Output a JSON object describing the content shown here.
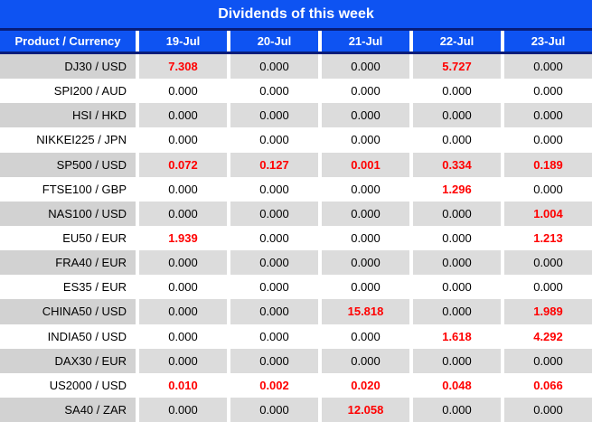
{
  "title": "Dividends of this week",
  "colors": {
    "header-blue": "#0E53F2",
    "navy-line": "#071D7A",
    "row-gray": "#DCDCDC",
    "product-gray": "#D2D2D2",
    "value-red": "#FF0000",
    "value-black": "#000000",
    "separator-white": "#FFFFFF"
  },
  "table": {
    "columns": [
      "Product / Currency",
      "19-Jul",
      "20-Jul",
      "21-Jul",
      "22-Jul",
      "23-Jul"
    ],
    "rows": [
      {
        "product": "DJ30 / USD",
        "values": [
          "7.308",
          "0.000",
          "0.000",
          "5.727",
          "0.000"
        ]
      },
      {
        "product": "SPI200 / AUD",
        "values": [
          "0.000",
          "0.000",
          "0.000",
          "0.000",
          "0.000"
        ]
      },
      {
        "product": "HSI / HKD",
        "values": [
          "0.000",
          "0.000",
          "0.000",
          "0.000",
          "0.000"
        ]
      },
      {
        "product": "NIKKEI225 / JPN",
        "values": [
          "0.000",
          "0.000",
          "0.000",
          "0.000",
          "0.000"
        ]
      },
      {
        "product": "SP500 / USD",
        "values": [
          "0.072",
          "0.127",
          "0.001",
          "0.334",
          "0.189"
        ]
      },
      {
        "product": "FTSE100 / GBP",
        "values": [
          "0.000",
          "0.000",
          "0.000",
          "1.296",
          "0.000"
        ]
      },
      {
        "product": "NAS100 / USD",
        "values": [
          "0.000",
          "0.000",
          "0.000",
          "0.000",
          "1.004"
        ]
      },
      {
        "product": "EU50 / EUR",
        "values": [
          "1.939",
          "0.000",
          "0.000",
          "0.000",
          "1.213"
        ]
      },
      {
        "product": "FRA40 / EUR",
        "values": [
          "0.000",
          "0.000",
          "0.000",
          "0.000",
          "0.000"
        ]
      },
      {
        "product": "ES35 / EUR",
        "values": [
          "0.000",
          "0.000",
          "0.000",
          "0.000",
          "0.000"
        ]
      },
      {
        "product": "CHINA50 / USD",
        "values": [
          "0.000",
          "0.000",
          "15.818",
          "0.000",
          "1.989"
        ]
      },
      {
        "product": "INDIA50 / USD",
        "values": [
          "0.000",
          "0.000",
          "0.000",
          "1.618",
          "4.292"
        ]
      },
      {
        "product": "DAX30 / EUR",
        "values": [
          "0.000",
          "0.000",
          "0.000",
          "0.000",
          "0.000"
        ]
      },
      {
        "product": "US2000 / USD",
        "values": [
          "0.010",
          "0.002",
          "0.020",
          "0.048",
          "0.066"
        ]
      },
      {
        "product": "SA40 / ZAR",
        "values": [
          "0.000",
          "0.000",
          "12.058",
          "0.000",
          "0.000"
        ]
      }
    ]
  }
}
